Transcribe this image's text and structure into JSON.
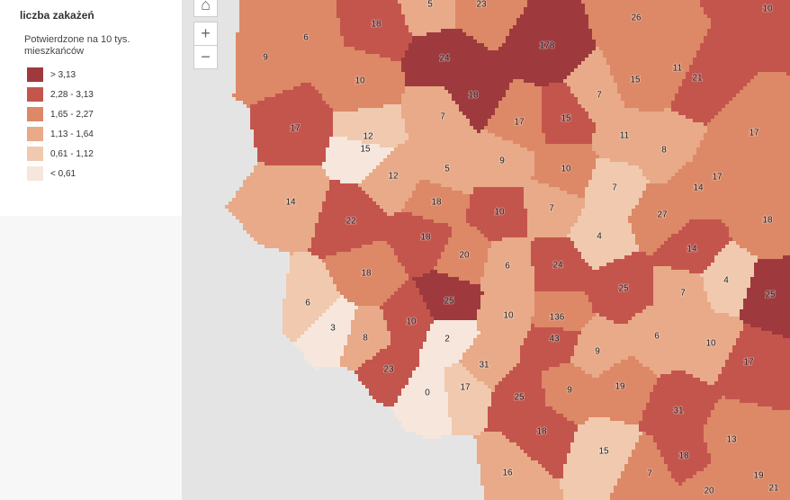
{
  "legend": {
    "title": "liczba zakażeń",
    "subtitle": "Potwierdzone na 10 tys. mieszkańców",
    "items": [
      {
        "label": "> 3,13",
        "color": "#9e3a3d"
      },
      {
        "label": "2,28 - 3,13",
        "color": "#c4554d"
      },
      {
        "label": "1,65 - 2,27",
        "color": "#dd8866"
      },
      {
        "label": "1,13 - 1,64",
        "color": "#e8aa88"
      },
      {
        "label": "0,61 - 1,12",
        "color": "#f0c9ae"
      },
      {
        "label": "< 0,61",
        "color": "#f7e6dc"
      }
    ]
  },
  "map": {
    "labels": [
      5,
      23,
      18,
      6,
      26,
      10,
      9,
      24,
      178,
      11,
      21,
      10,
      15,
      7,
      18,
      7,
      17,
      15,
      17,
      12,
      15,
      11,
      17,
      9,
      5,
      8,
      10,
      12,
      17,
      14,
      7,
      14,
      18,
      10,
      7,
      27,
      18,
      22,
      18,
      4,
      14,
      20,
      6,
      24,
      18,
      25,
      4,
      7,
      25,
      25,
      6,
      10,
      136,
      10,
      3,
      6,
      8,
      43,
      2,
      10,
      9,
      17,
      31,
      23,
      19,
      9,
      17,
      0,
      25,
      31,
      13,
      18,
      15,
      18,
      16,
      7,
      19,
      20,
      21
    ]
  }
}
